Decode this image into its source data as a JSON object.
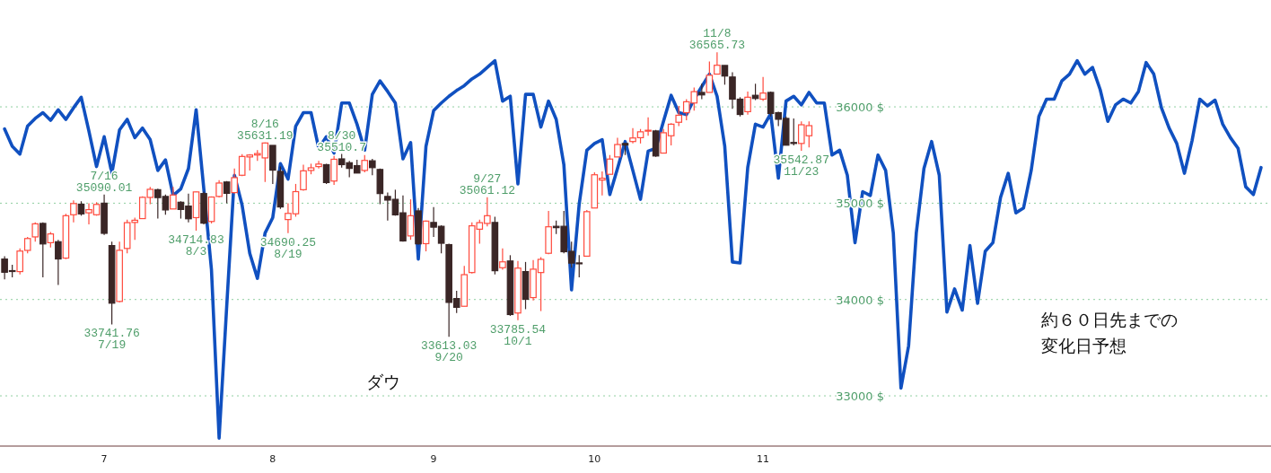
{
  "chart_data": {
    "type": "candlestick",
    "categories": [
      null,
      null,
      null,
      null,
      null,
      null,
      null,
      null,
      null,
      null,
      null,
      null,
      null,
      "7",
      null,
      null,
      null,
      null,
      null,
      null,
      null,
      null,
      null,
      null,
      null,
      null,
      null,
      null,
      null,
      null,
      null,
      null,
      null,
      null,
      null,
      "8",
      null,
      null,
      null,
      null,
      null,
      null,
      null,
      null,
      null,
      null,
      null,
      null,
      null,
      null,
      null,
      null,
      null,
      null,
      null,
      null,
      "9",
      null,
      null,
      null,
      null,
      null,
      null,
      null,
      null,
      null,
      null,
      null,
      null,
      null,
      null,
      null,
      null,
      null,
      null,
      null,
      null,
      "10",
      null,
      null,
      null,
      null,
      null,
      null,
      null,
      null,
      null,
      null,
      null,
      null,
      null,
      null,
      null,
      null,
      null,
      null,
      null,
      null,
      null,
      "11",
      null,
      null,
      null,
      null,
      null,
      null,
      null,
      null,
      null,
      null,
      null,
      null,
      null,
      null,
      null,
      null,
      null,
      null,
      null,
      null,
      null,
      null,
      null,
      null,
      null,
      null,
      null,
      null,
      null,
      null,
      null,
      null,
      null,
      null,
      null,
      null,
      null,
      null,
      null,
      null,
      null,
      null,
      null,
      null,
      null,
      null,
      null,
      null,
      null,
      null,
      null,
      null,
      null,
      null,
      null,
      null,
      null,
      null,
      null,
      null,
      null,
      null,
      null,
      null,
      null
    ],
    "ohlc": [
      [
        34420,
        34450,
        34210,
        34283
      ],
      [
        34300,
        34360,
        34230,
        34292
      ],
      [
        34290,
        34530,
        34260,
        34503
      ],
      [
        34510,
        34650,
        34480,
        34633
      ],
      [
        34650,
        34800,
        34600,
        34786
      ],
      [
        34790,
        34800,
        34230,
        34577
      ],
      [
        34590,
        34700,
        34540,
        34681
      ],
      [
        34600,
        34620,
        34150,
        34421
      ],
      [
        34430,
        34890,
        34420,
        34870
      ],
      [
        34880,
        35030,
        34800,
        34996
      ],
      [
        34990,
        35020,
        34870,
        34889
      ],
      [
        34900,
        35000,
        34780,
        34933
      ],
      [
        34880,
        35010,
        34870,
        34987
      ],
      [
        35000,
        35090.01,
        34670,
        34687
      ],
      [
        34560,
        34600,
        33741.76,
        33962
      ],
      [
        33980,
        34600,
        33970,
        34511
      ],
      [
        34530,
        34830,
        34480,
        34798
      ],
      [
        34800,
        34850,
        34620,
        34823
      ],
      [
        34840,
        35070,
        34840,
        35061
      ],
      [
        35060,
        35170,
        34990,
        35144
      ],
      [
        35140,
        35150,
        34840,
        35058
      ],
      [
        35070,
        35090,
        34880,
        34930
      ],
      [
        34940,
        35170,
        34940,
        35085
      ],
      [
        35010,
        35020,
        34840,
        34935
      ],
      [
        34970,
        35100,
        34800,
        34838
      ],
      [
        34850,
        35120,
        34714.83,
        35117
      ],
      [
        35100,
        35120,
        34780,
        34793
      ],
      [
        34810,
        35070,
        34790,
        35064
      ],
      [
        35070,
        35240,
        35060,
        35209
      ],
      [
        35220,
        35230,
        35000,
        35102
      ],
      [
        35110,
        35360,
        35100,
        35265
      ],
      [
        35290,
        35510,
        35280,
        35485
      ],
      [
        35480,
        35510,
        35340,
        35500
      ],
      [
        35500,
        35550,
        35440,
        35515
      ],
      [
        35470,
        35631.19,
        35220,
        35625
      ],
      [
        35600,
        35600,
        35200,
        35343
      ],
      [
        35330,
        35380,
        34940,
        34961
      ],
      [
        34830,
        35000,
        34690.25,
        34894
      ],
      [
        34890,
        35200,
        34860,
        35120
      ],
      [
        35140,
        35400,
        35130,
        35336
      ],
      [
        35340,
        35410,
        35300,
        35367
      ],
      [
        35380,
        35440,
        35360,
        35406
      ],
      [
        35400,
        35410,
        35200,
        35214
      ],
      [
        35230,
        35490,
        35190,
        35456
      ],
      [
        35460,
        35510.7,
        35370,
        35400
      ],
      [
        35420,
        35440,
        35270,
        35361
      ],
      [
        35390,
        35450,
        35310,
        35313
      ],
      [
        35340,
        35500,
        35320,
        35444
      ],
      [
        35440,
        35460,
        35290,
        35369
      ],
      [
        35350,
        35360,
        34990,
        35100
      ],
      [
        35070,
        35110,
        34820,
        35032
      ],
      [
        35040,
        35140,
        34870,
        34879
      ],
      [
        34900,
        35080,
        34600,
        34608
      ],
      [
        34660,
        35040,
        34620,
        34870
      ],
      [
        34920,
        34950,
        34570,
        34578
      ],
      [
        34580,
        34820,
        34500,
        34814
      ],
      [
        34800,
        34960,
        34650,
        34751
      ],
      [
        34760,
        34770,
        34480,
        34584
      ],
      [
        34570,
        34580,
        33613.03,
        33970
      ],
      [
        34010,
        34090,
        33860,
        33919
      ],
      [
        33930,
        34350,
        33930,
        34258
      ],
      [
        34280,
        34800,
        34270,
        34765
      ],
      [
        34730,
        34830,
        34580,
        34798
      ],
      [
        34790,
        35061.12,
        34760,
        34870
      ],
      [
        34800,
        34860,
        34260,
        34299
      ],
      [
        34330,
        34530,
        34310,
        34391
      ],
      [
        34400,
        34460,
        33830,
        33844
      ],
      [
        33860,
        34400,
        33785.54,
        34326
      ],
      [
        34290,
        34390,
        33900,
        34002
      ],
      [
        34020,
        34410,
        33990,
        34315
      ],
      [
        34280,
        34440,
        33880,
        34417
      ],
      [
        34480,
        34920,
        34470,
        34755
      ],
      [
        34760,
        34820,
        34680,
        34746
      ],
      [
        34760,
        34920,
        34480,
        34496
      ],
      [
        34500,
        34600,
        34330,
        34378
      ],
      [
        34380,
        34460,
        34230,
        34377
      ],
      [
        34450,
        34930,
        34450,
        34912
      ],
      [
        34950,
        35320,
        34950,
        35295
      ],
      [
        35240,
        35330,
        35080,
        35259
      ],
      [
        35300,
        35500,
        35300,
        35458
      ],
      [
        35480,
        35680,
        35480,
        35609
      ],
      [
        35620,
        35620,
        35500,
        35603
      ],
      [
        35640,
        35780,
        35620,
        35677
      ],
      [
        35680,
        35770,
        35620,
        35741
      ],
      [
        35750,
        35890,
        35700,
        35757
      ],
      [
        35750,
        35760,
        35480,
        35490
      ],
      [
        35520,
        35770,
        35520,
        35731
      ],
      [
        35700,
        35830,
        35600,
        35820
      ],
      [
        35840,
        36010,
        35800,
        35913
      ],
      [
        35940,
        36080,
        35860,
        36053
      ],
      [
        36040,
        36200,
        35960,
        36158
      ],
      [
        36150,
        36240,
        36080,
        36124
      ],
      [
        36150,
        36470,
        36150,
        36328
      ],
      [
        36340,
        36565.73,
        36340,
        36432
      ],
      [
        36430,
        36430,
        36230,
        36320
      ],
      [
        36310,
        36360,
        35980,
        36080
      ],
      [
        36080,
        36100,
        35900,
        35921
      ],
      [
        35950,
        36160,
        35920,
        36100
      ],
      [
        36120,
        36240,
        36070,
        36087
      ],
      [
        36080,
        36310,
        36060,
        36143
      ],
      [
        36150,
        36160,
        35900,
        35931
      ],
      [
        35940,
        35950,
        35800,
        35871
      ],
      [
        35880,
        35900,
        35600,
        35602
      ],
      [
        35630,
        35880,
        35600,
        35620
      ],
      [
        35620,
        35850,
        35542.87,
        35814
      ],
      [
        35700,
        35850,
        35580,
        35805
      ],
      null,
      null,
      null,
      null,
      null,
      null,
      null,
      null,
      null,
      null,
      null,
      null,
      null,
      null,
      null,
      null,
      null,
      null,
      null,
      null,
      null,
      null,
      null,
      null,
      null,
      null,
      null,
      null,
      null,
      null,
      null,
      null,
      null,
      null,
      null,
      null,
      null,
      null,
      null,
      null,
      null,
      null,
      null,
      null,
      null,
      null,
      null,
      null,
      null,
      null,
      null,
      null,
      null,
      null,
      null,
      null,
      null,
      null,
      null
    ],
    "series": [
      {
        "type": "line",
        "color": "#1050c0",
        "values": [
          35770,
          35590,
          35510,
          35800,
          35880,
          35940,
          35860,
          35970,
          35870,
          35990,
          36100,
          35750,
          35380,
          35690,
          35310,
          35760,
          35870,
          35680,
          35780,
          35660,
          35340,
          35450,
          35080,
          35150,
          35360,
          35970,
          35150,
          34310,
          32560,
          33940,
          35290,
          34980,
          34480,
          34220,
          34690,
          34850,
          35410,
          35250,
          35800,
          35940,
          35940,
          35570,
          35690,
          35520,
          36040,
          36040,
          35820,
          35550,
          36130,
          36270,
          36160,
          36040,
          35460,
          35630,
          34420,
          35590,
          35960,
          36040,
          36110,
          36170,
          36220,
          36290,
          36340,
          36410,
          36480,
          36060,
          36110,
          35200,
          36130,
          36130,
          35790,
          36060,
          35870,
          35400,
          34100,
          34990,
          35550,
          35620,
          35660,
          35090,
          35360,
          35640,
          35340,
          35040,
          35540,
          35570,
          35850,
          36120,
          35940,
          35920,
          36080,
          36210,
          36340,
          36110,
          35590,
          34390,
          34380,
          35370,
          35820,
          35790,
          35930,
          35260,
          36060,
          36110,
          36020,
          36150,
          36040,
          36040,
          35500,
          35550,
          35290,
          34590,
          35120,
          35080,
          35500,
          35340,
          34690,
          33080,
          33520,
          34690,
          35360,
          35640,
          35290,
          33870,
          34110,
          33890,
          34560,
          33960,
          34500,
          34590,
          35060,
          35310,
          34900,
          34950,
          35340,
          35900,
          36080,
          36080,
          36270,
          36340,
          36480,
          36340,
          36410,
          36180,
          35850,
          36020,
          36080,
          36040,
          36160,
          36460,
          36340,
          35990,
          35780,
          35620,
          35310,
          35650,
          36080,
          36010,
          36070,
          35820,
          35680,
          35570,
          35170,
          35090,
          35370
        ]
      }
    ],
    "ylim": [
      32500,
      37100
    ],
    "yticks": [
      {
        "value": 33000,
        "label": "33000 $"
      },
      {
        "value": 34000,
        "label": "34000 $"
      },
      {
        "value": 35000,
        "label": "35000 $"
      },
      {
        "value": 36000,
        "label": "36000 $"
      }
    ],
    "grid": true,
    "annotations": [
      {
        "text": "7/16\n35090.01",
        "y": 35090.01
      },
      {
        "text": "33741.76\n7/19",
        "y": 33741.76
      },
      {
        "text": "34714.83\n8/3",
        "y": 34714.83
      },
      {
        "text": "8/16\n35631.19",
        "y": 35631.19
      },
      {
        "text": "34690.25\n8/19",
        "y": 34690.25
      },
      {
        "text": "8/30\n35510.7",
        "y": 35510.7
      },
      {
        "text": "33613.03\n9/20",
        "y": 33613.03
      },
      {
        "text": "9/27\n35061.12",
        "y": 35061.12
      },
      {
        "text": "33785.54\n10/1",
        "y": 33785.54
      },
      {
        "text": "11/8\n36565.73",
        "y": 36565.73
      },
      {
        "text": "35542.87\n11/23",
        "y": 35542.87
      },
      "ダウ",
      "約６０日先までの",
      "変化日予想"
    ]
  }
}
